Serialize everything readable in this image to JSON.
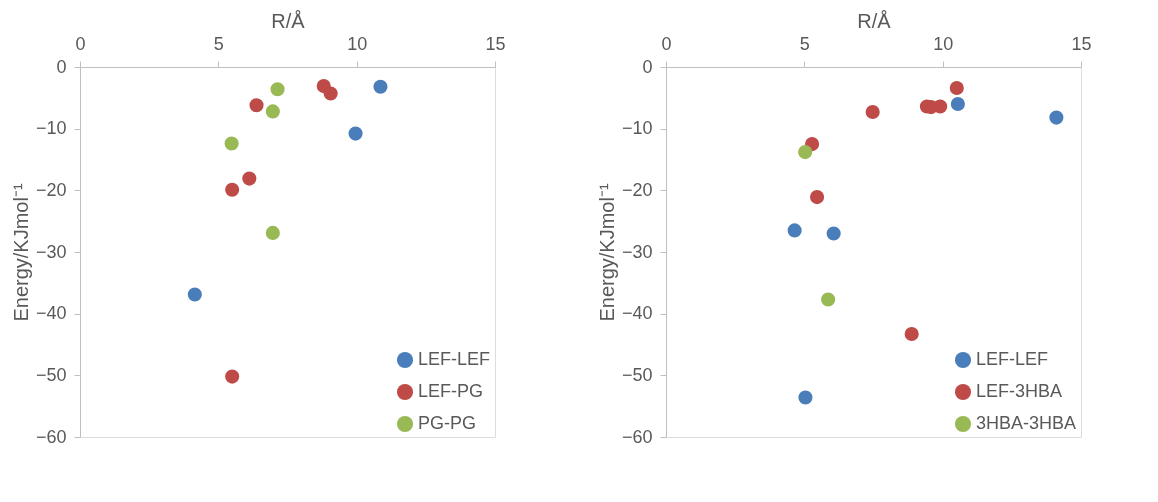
{
  "chart_data": [
    {
      "type": "scatter",
      "xlabel": "R/Å",
      "ylabel": "Energy/KJmol⁻¹",
      "xlim": [
        0,
        15
      ],
      "xticks": [
        0,
        5,
        10,
        15
      ],
      "ylim": [
        -60,
        0
      ],
      "yticks": [
        -60,
        -50,
        -40,
        -30,
        -20,
        -10,
        0
      ],
      "grid": false,
      "legend": "bottom right",
      "marker": "circle",
      "series": [
        {
          "name": "LEF-LEF",
          "color": "#4a7ebb",
          "x": [
            10.86,
            9.96,
            4.15
          ],
          "values": [
            -3.2,
            -10.8,
            -36.9
          ]
        },
        {
          "name": "LEF-PG",
          "color": "#be4b48",
          "x": [
            8.81,
            9.06,
            6.38,
            6.12,
            5.5,
            5.5
          ],
          "values": [
            -3.1,
            -4.3,
            -6.2,
            -18.1,
            -19.9,
            -50.2
          ]
        },
        {
          "name": "PG-PG",
          "color": "#98b954",
          "x": [
            7.14,
            6.97,
            5.48,
            6.97
          ],
          "values": [
            -3.6,
            -7.2,
            -12.4,
            -26.9
          ]
        }
      ]
    },
    {
      "type": "scatter",
      "xlabel": "R/Å",
      "ylabel": "Energy/KJmol⁻¹",
      "xlim": [
        0,
        15
      ],
      "xticks": [
        0,
        5,
        10,
        15
      ],
      "ylim": [
        -60,
        0
      ],
      "yticks": [
        -60,
        -50,
        -40,
        -30,
        -20,
        -10,
        0
      ],
      "grid": false,
      "legend": "bottom right",
      "marker": "circle",
      "series": [
        {
          "name": "LEF-LEF",
          "color": "#4a7ebb",
          "x": [
            10.55,
            14.11,
            4.65,
            6.06,
            5.04
          ],
          "values": [
            -6.0,
            -8.2,
            -26.5,
            -27.0,
            -53.6
          ]
        },
        {
          "name": "LEF-3HBA",
          "color": "#be4b48",
          "x": [
            10.51,
            9.43,
            9.58,
            9.91,
            7.47,
            5.28,
            5.46,
            8.88
          ],
          "values": [
            -3.4,
            -6.4,
            -6.5,
            -6.4,
            -7.3,
            -12.5,
            -21.1,
            -43.3
          ]
        },
        {
          "name": "3HBA-3HBA",
          "color": "#98b954",
          "x": [
            5.03,
            5.86
          ],
          "values": [
            -13.8,
            -37.7
          ]
        }
      ]
    }
  ]
}
